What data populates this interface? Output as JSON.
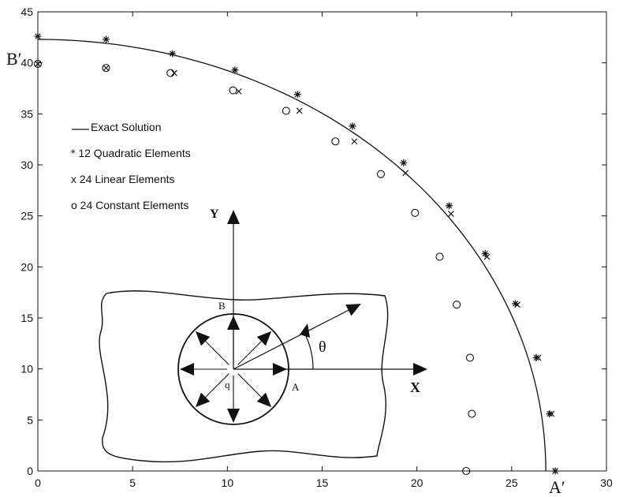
{
  "chart_data": {
    "type": "scatter",
    "xlim": [
      0,
      30
    ],
    "ylim": [
      0,
      45
    ],
    "xticks": [
      0,
      5,
      10,
      15,
      20,
      25,
      30
    ],
    "yticks": [
      0,
      5,
      10,
      15,
      20,
      25,
      30,
      35,
      40,
      45
    ],
    "grid": false,
    "legend_position": "upper-left",
    "legend": [
      "Exact Solution",
      "* 12 Quadratic Elements",
      "x 24 Linear Elements",
      "o 24 Constant Elements"
    ],
    "series": [
      {
        "name": "Exact Solution",
        "style": "line",
        "radius_x": 26.8,
        "radius_y": 42.3
      },
      {
        "name": "12 Quadratic Elements",
        "marker": "*",
        "x": [
          0.0,
          3.6,
          7.1,
          10.4,
          13.7,
          16.6,
          19.3,
          21.7,
          23.6,
          25.2,
          26.3,
          27.0,
          27.3
        ],
        "y": [
          42.6,
          42.3,
          40.9,
          39.3,
          36.9,
          33.8,
          30.2,
          26.0,
          21.3,
          16.4,
          11.1,
          5.6,
          0.0
        ]
      },
      {
        "name": "24 Linear Elements",
        "marker": "x",
        "x": [
          0.0,
          3.6,
          7.2,
          10.6,
          13.8,
          16.7,
          19.4,
          21.8,
          23.7,
          25.3,
          26.4,
          27.1,
          27.3
        ],
        "y": [
          39.9,
          39.5,
          39.0,
          37.2,
          35.3,
          32.3,
          29.2,
          25.2,
          21.0,
          16.3,
          11.1,
          5.6,
          0.0
        ]
      },
      {
        "name": "24 Constant Elements",
        "marker": "o",
        "x": [
          0.0,
          3.6,
          7.0,
          10.3,
          13.1,
          15.7,
          18.1,
          19.9,
          21.2,
          22.1,
          22.8,
          22.9,
          22.6
        ],
        "y": [
          39.9,
          39.5,
          39.0,
          37.3,
          35.3,
          32.3,
          29.1,
          25.3,
          21.0,
          16.3,
          11.1,
          5.6,
          0.0
        ]
      }
    ],
    "annotations": {
      "b_prime": "B′",
      "a_prime": "A′"
    }
  },
  "inset": {
    "y_label": "Y",
    "x_label": "X",
    "b_label": "B",
    "a_label": "A",
    "q_label": "q",
    "theta_label": "θ"
  }
}
